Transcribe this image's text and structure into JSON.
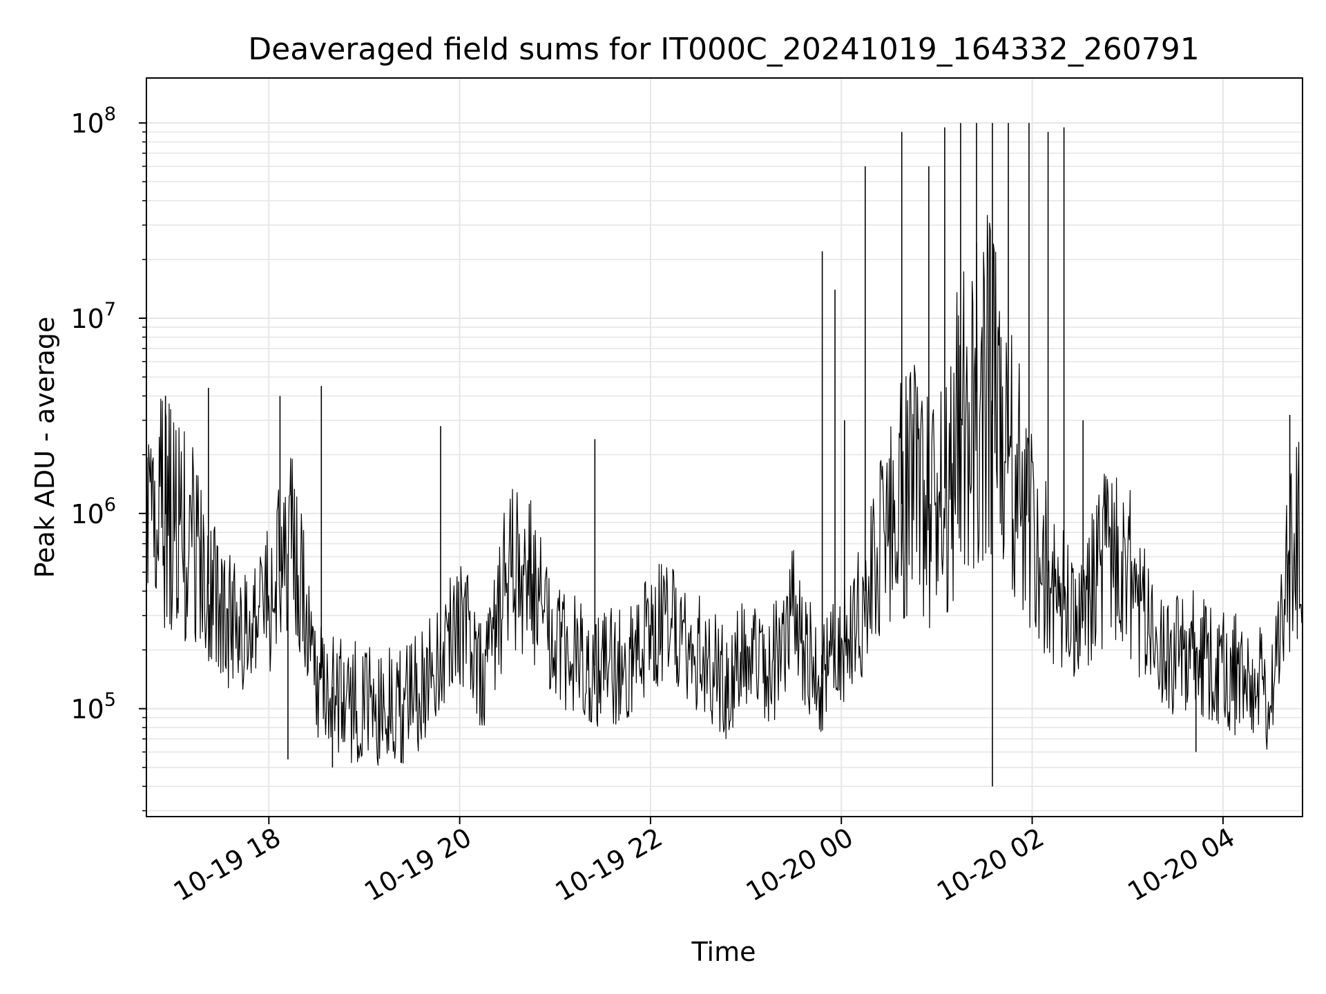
{
  "chart_data": {
    "type": "line",
    "title": "Deaveraged field sums for IT000C_20241019_164332_260791",
    "xlabel": "Time",
    "ylabel": "Peak ADU - average",
    "yscale": "log",
    "grid": true,
    "line_color": "#000000",
    "grid_color": "#e6e6e6",
    "xlim": [
      "2024-10-19 16:43",
      "2024-10-20 04:50"
    ],
    "ylim": [
      28000,
      170000000
    ],
    "x_ticks": [
      {
        "value": "2024-10-19 18:00",
        "label": "10-19 18"
      },
      {
        "value": "2024-10-19 20:00",
        "label": "10-19 20"
      },
      {
        "value": "2024-10-19 22:00",
        "label": "10-19 22"
      },
      {
        "value": "2024-10-20 00:00",
        "label": "10-20 00"
      },
      {
        "value": "2024-10-20 02:00",
        "label": "10-20 02"
      },
      {
        "value": "2024-10-20 04:00",
        "label": "10-20 04"
      }
    ],
    "y_ticks": [
      {
        "value": 100000,
        "base": "10",
        "exp": "5"
      },
      {
        "value": 1000000,
        "base": "10",
        "exp": "6"
      },
      {
        "value": 10000000,
        "base": "10",
        "exp": "7"
      },
      {
        "value": 100000000,
        "base": "10",
        "exp": "8"
      }
    ],
    "series": [
      {
        "x": [
          "2024-10-19 16:45",
          "2024-10-19 17:00",
          "2024-10-19 17:15",
          "2024-10-19 17:30",
          "2024-10-19 17:45",
          "2024-10-19 18:00",
          "2024-10-19 18:15",
          "2024-10-19 18:30",
          "2024-10-19 18:45",
          "2024-10-19 19:00",
          "2024-10-19 19:15",
          "2024-10-19 19:30",
          "2024-10-19 19:45",
          "2024-10-19 20:00",
          "2024-10-19 20:15",
          "2024-10-19 20:30",
          "2024-10-19 20:45",
          "2024-10-19 21:00",
          "2024-10-19 21:15",
          "2024-10-19 21:30",
          "2024-10-19 21:45",
          "2024-10-19 22:00",
          "2024-10-19 22:15",
          "2024-10-19 22:30",
          "2024-10-19 22:45",
          "2024-10-19 23:00",
          "2024-10-19 23:15",
          "2024-10-19 23:30",
          "2024-10-19 23:45",
          "2024-10-20 00:00",
          "2024-10-20 00:15",
          "2024-10-20 00:30",
          "2024-10-20 00:45",
          "2024-10-20 01:00",
          "2024-10-20 01:15",
          "2024-10-20 01:30",
          "2024-10-20 01:45",
          "2024-10-20 02:00",
          "2024-10-20 02:15",
          "2024-10-20 02:30",
          "2024-10-20 02:45",
          "2024-10-20 03:00",
          "2024-10-20 03:15",
          "2024-10-20 03:30",
          "2024-10-20 03:45",
          "2024-10-20 04:00",
          "2024-10-20 04:15",
          "2024-10-20 04:30",
          "2024-10-20 04:45"
        ],
        "y": [
          1200000,
          900000,
          600000,
          300000,
          250000,
          380000,
          700000,
          150000,
          120000,
          100000,
          100000,
          110000,
          180000,
          300000,
          150000,
          500000,
          450000,
          200000,
          180000,
          160000,
          180000,
          250000,
          280000,
          200000,
          130000,
          180000,
          160000,
          300000,
          140000,
          200000,
          400000,
          800000,
          1500000,
          900000,
          3000000,
          5000000,
          2000000,
          800000,
          400000,
          250000,
          600000,
          500000,
          250000,
          180000,
          200000,
          150000,
          150000,
          120000,
          800000
        ],
        "peaks": [
          {
            "x": "2024-10-19 16:55",
            "y": 4000000
          },
          {
            "x": "2024-10-19 17:22",
            "y": 4400000
          },
          {
            "x": "2024-10-19 18:07",
            "y": 4000000
          },
          {
            "x": "2024-10-19 18:33",
            "y": 4500000
          },
          {
            "x": "2024-10-19 19:48",
            "y": 2800000
          },
          {
            "x": "2024-10-19 21:25",
            "y": 2400000
          },
          {
            "x": "2024-10-19 23:48",
            "y": 22000000
          },
          {
            "x": "2024-10-19 23:56",
            "y": 14000000
          },
          {
            "x": "2024-10-20 00:02",
            "y": 3000000
          },
          {
            "x": "2024-10-20 00:15",
            "y": 60000000
          },
          {
            "x": "2024-10-20 00:38",
            "y": 90000000
          },
          {
            "x": "2024-10-20 00:55",
            "y": 60000000
          },
          {
            "x": "2024-10-20 01:05",
            "y": 95000000
          },
          {
            "x": "2024-10-20 01:15",
            "y": 100000000
          },
          {
            "x": "2024-10-20 01:25",
            "y": 100000000
          },
          {
            "x": "2024-10-20 01:35",
            "y": 100000000
          },
          {
            "x": "2024-10-20 01:45",
            "y": 100000000
          },
          {
            "x": "2024-10-20 01:58",
            "y": 100000000
          },
          {
            "x": "2024-10-20 02:10",
            "y": 90000000
          },
          {
            "x": "2024-10-20 02:20",
            "y": 95000000
          },
          {
            "x": "2024-10-20 02:32",
            "y": 3000000
          },
          {
            "x": "2024-10-20 04:42",
            "y": 3200000
          }
        ],
        "troughs": [
          {
            "x": "2024-10-19 18:12",
            "y": 55000
          },
          {
            "x": "2024-10-19 18:40",
            "y": 50000
          },
          {
            "x": "2024-10-20 01:35",
            "y": 40000
          },
          {
            "x": "2024-10-20 03:43",
            "y": 60000
          }
        ]
      }
    ]
  }
}
